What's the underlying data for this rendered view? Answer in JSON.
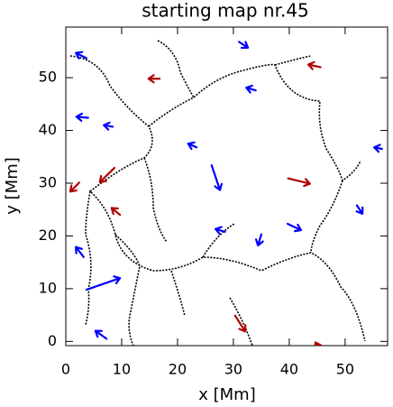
{
  "chart_data": {
    "type": "quiver",
    "title": "starting map nr.45",
    "x_label": "x [Mm]",
    "y_label": "y [Mm]",
    "xlim": [
      0,
      57.6
    ],
    "ylim": [
      -0.8,
      59.6
    ],
    "xticks": [
      0,
      10,
      20,
      30,
      40,
      50
    ],
    "yticks": [
      0,
      10,
      20,
      30,
      40,
      50
    ],
    "series": [
      {
        "color": "#0000ff",
        "x": [
          3.7,
          31.0,
          34.0,
          4.0,
          8.4,
          23.4,
          26.1,
          56.6,
          39.7,
          52.1,
          28.5,
          35.0,
          3.2,
          3.7,
          7.3
        ],
        "y": [
          53.7,
          56.8,
          47.6,
          42.4,
          40.7,
          36.8,
          33.4,
          36.5,
          22.3,
          25.8,
          20.8,
          20.3,
          16.0,
          9.8,
          0.5
        ],
        "u": [
          -1.9,
          1.6,
          -1.7,
          -2.1,
          -1.6,
          -1.5,
          1.5,
          -1.4,
          2.4,
          1.0,
          -1.7,
          -0.6,
          -1.4,
          6.0,
          -2.0
        ],
        "v": [
          1.0,
          -1.1,
          0.5,
          0.2,
          0.3,
          0.7,
          -4.7,
          0.3,
          -1.2,
          -1.6,
          0.5,
          -2.1,
          1.9,
          2.2,
          1.5
        ]
      },
      {
        "color": "#b00000",
        "x": [
          16.8,
          45.6,
          39.8,
          8.7,
          2.4,
          9.7,
          30.3,
          45.2
        ],
        "y": [
          49.8,
          52.0,
          30.9,
          32.9,
          30.1,
          24.0,
          4.9,
          -1.2
        ],
        "u": [
          -2.0,
          -2.2,
          3.9,
          -2.6,
          -1.6,
          -1.5,
          1.8,
          -0.5
        ],
        "v": [
          0.0,
          0.5,
          -1.0,
          -2.7,
          -1.7,
          1.3,
          -3.0,
          1.0
        ]
      }
    ]
  }
}
